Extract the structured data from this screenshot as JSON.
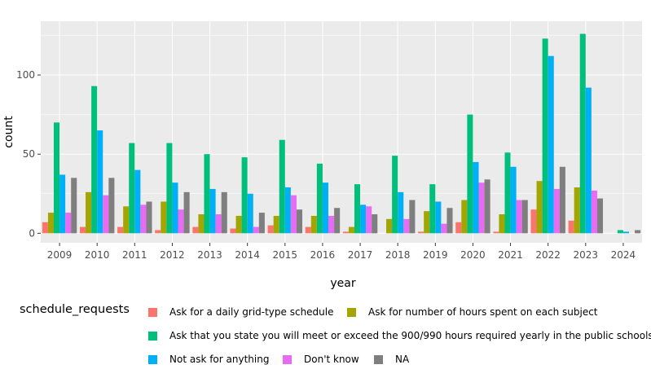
{
  "chart_data": {
    "type": "bar",
    "xlabel": "year",
    "ylabel": "count",
    "ylim": [
      -6,
      134
    ],
    "yticks": [
      0,
      50,
      100
    ],
    "grid": true,
    "legend_placement": "bottom",
    "legend_title": "schedule_requests",
    "categories": [
      "2009",
      "2010",
      "2011",
      "2012",
      "2013",
      "2014",
      "2015",
      "2016",
      "2017",
      "2018",
      "2019",
      "2020",
      "2021",
      "2022",
      "2023",
      "2024"
    ],
    "series": [
      {
        "name": "Ask for a daily grid-type schedule",
        "color": "#F8766D",
        "values": [
          7,
          4,
          4,
          2,
          4,
          3,
          5,
          4,
          1,
          0,
          1,
          7,
          1,
          15,
          8,
          0
        ]
      },
      {
        "name": "Ask for number of hours spent on each subject",
        "color": "#A3A500",
        "values": [
          13,
          26,
          17,
          20,
          12,
          11,
          11,
          11,
          4,
          9,
          14,
          21,
          12,
          33,
          29,
          0
        ]
      },
      {
        "name": "Ask that you state you will meet or exceed the 900/990 hours required yearly in the public schools",
        "color": "#00BF7D",
        "values": [
          70,
          93,
          57,
          57,
          50,
          48,
          59,
          44,
          31,
          49,
          31,
          75,
          51,
          123,
          126,
          2
        ]
      },
      {
        "name": "Not ask for anything",
        "color": "#00B0F6",
        "values": [
          37,
          65,
          40,
          32,
          28,
          25,
          29,
          32,
          18,
          26,
          20,
          45,
          42,
          112,
          92,
          1
        ]
      },
      {
        "name": "Don't know",
        "color": "#E76BF3",
        "values": [
          13,
          24,
          18,
          15,
          12,
          4,
          24,
          11,
          17,
          9,
          6,
          32,
          21,
          28,
          27,
          0
        ]
      },
      {
        "name": "NA",
        "color": "#7F7F7F",
        "values": [
          35,
          35,
          20,
          26,
          26,
          13,
          15,
          16,
          12,
          21,
          16,
          34,
          21,
          42,
          22,
          2
        ]
      }
    ]
  }
}
